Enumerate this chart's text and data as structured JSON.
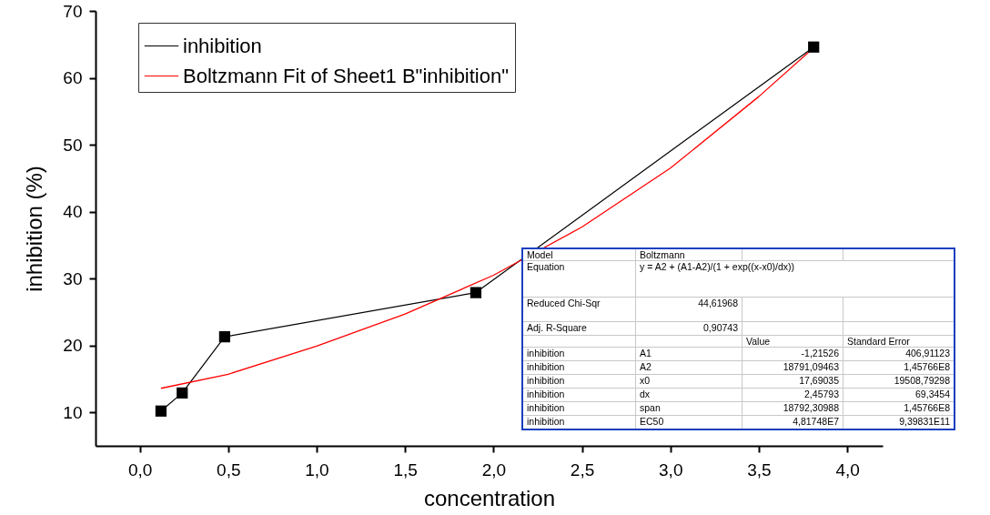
{
  "chart_data": {
    "type": "line",
    "xlabel": "concentration",
    "ylabel": "inhibition (%)",
    "xlim": [
      -0.25,
      4.2
    ],
    "xticks": [
      {
        "value": 0,
        "label": "0,0"
      },
      {
        "value": 0.5,
        "label": "0,5"
      },
      {
        "value": 1,
        "label": "1,0"
      },
      {
        "value": 1.5,
        "label": "1,5"
      },
      {
        "value": 2,
        "label": "2,0"
      },
      {
        "value": 2.5,
        "label": "2,5"
      },
      {
        "value": 3,
        "label": "3,0"
      },
      {
        "value": 3.5,
        "label": "3,5"
      },
      {
        "value": 4,
        "label": "4,0"
      }
    ],
    "ylim": [
      5,
      70
    ],
    "yticks": [
      10,
      20,
      30,
      40,
      50,
      60,
      70
    ],
    "grid": false,
    "legend": "top left",
    "series": [
      {
        "name": "inhibition",
        "color": "#000000",
        "marker": "square",
        "x": [
          0.12,
          0.24,
          0.48,
          1.9,
          3.81
        ],
        "values": [
          10.2,
          12.9,
          21.3,
          27.9,
          64.6
        ]
      },
      {
        "name": "Boltzmann Fit of Sheet1 B\"inhibition\"",
        "color": "#ff0000",
        "x": [
          0.12,
          0.5,
          1.0,
          1.5,
          2.0,
          2.5,
          3.0,
          3.5,
          3.81
        ],
        "values": [
          13.6,
          15.7,
          19.9,
          24.7,
          30.5,
          37.7,
          46.5,
          57.2,
          64.5
        ]
      }
    ],
    "annotations": [
      "Model",
      "Boltzmann",
      "Equation",
      "y = A2 + (A1-A2)/(1 + exp((x-x0)/dx))",
      "Reduced Chi-Sqr",
      "44,61968",
      "Adj. R-Square",
      "0,90743",
      "Value",
      "Standard Error",
      "inhibition",
      "A1",
      "-1,21526",
      "406,91123",
      "inhibition",
      "A2",
      "18791,09463",
      "1,45766E8",
      "inhibition",
      "x0",
      "17,69035",
      "19508,79298",
      "inhibition",
      "dx",
      "2,45793",
      "69,3454",
      "inhibition",
      "span",
      "18792,30988",
      "1,45766E8",
      "inhibition",
      "EC50",
      "4,81748E7",
      "9,39831E11"
    ]
  }
}
